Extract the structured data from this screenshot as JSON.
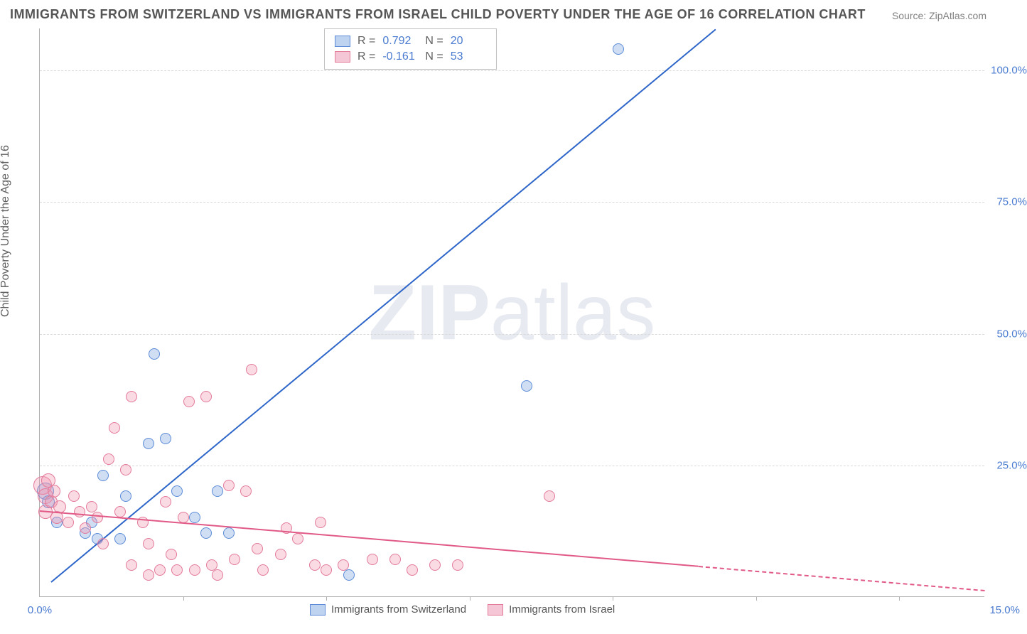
{
  "title": "IMMIGRANTS FROM SWITZERLAND VS IMMIGRANTS FROM ISRAEL CHILD POVERTY UNDER THE AGE OF 16 CORRELATION CHART",
  "source": "Source: ZipAtlas.com",
  "ylabel": "Child Poverty Under the Age of 16",
  "watermark_a": "ZIP",
  "watermark_b": "atlas",
  "xlim": [
    0,
    16.5
  ],
  "ylim": [
    0,
    108
  ],
  "ytick_step": 25,
  "xtick_step": 2.5,
  "ytick_labels": [
    "25.0%",
    "50.0%",
    "75.0%",
    "100.0%"
  ],
  "xtick_label_first": "0.0%",
  "xtick_label_last": "15.0%",
  "grid_color": "#d9d9d9",
  "axis_color": "#b0b0b0",
  "label_color": "#4a7bd0",
  "series": [
    {
      "name": "Immigrants from Switzerland",
      "short": "switzerland",
      "R": "0.792",
      "N": "20",
      "fill": "rgba(120,160,220,0.35)",
      "stroke": "#5b8bd8",
      "swatch_fill": "#bdd3f0",
      "swatch_stroke": "#5b8bd8",
      "line_color": "#2e66c9",
      "reg": {
        "x1": 0.2,
        "y1": 3,
        "x2": 11.8,
        "y2": 108
      },
      "points": [
        {
          "x": 0.1,
          "y": 20,
          "r": 12
        },
        {
          "x": 0.15,
          "y": 18,
          "r": 9
        },
        {
          "x": 0.3,
          "y": 14,
          "r": 8
        },
        {
          "x": 0.8,
          "y": 12,
          "r": 8
        },
        {
          "x": 0.9,
          "y": 14,
          "r": 8
        },
        {
          "x": 1.0,
          "y": 11,
          "r": 8
        },
        {
          "x": 1.1,
          "y": 23,
          "r": 8
        },
        {
          "x": 1.4,
          "y": 11,
          "r": 8
        },
        {
          "x": 1.5,
          "y": 19,
          "r": 8
        },
        {
          "x": 1.9,
          "y": 29,
          "r": 8
        },
        {
          "x": 2.0,
          "y": 46,
          "r": 8
        },
        {
          "x": 2.2,
          "y": 30,
          "r": 8
        },
        {
          "x": 2.4,
          "y": 20,
          "r": 8
        },
        {
          "x": 2.7,
          "y": 15,
          "r": 8
        },
        {
          "x": 2.9,
          "y": 12,
          "r": 8
        },
        {
          "x": 3.1,
          "y": 20,
          "r": 8
        },
        {
          "x": 3.3,
          "y": 12,
          "r": 8
        },
        {
          "x": 5.4,
          "y": 4,
          "r": 8
        },
        {
          "x": 8.5,
          "y": 40,
          "r": 8
        },
        {
          "x": 10.1,
          "y": 104,
          "r": 8
        }
      ]
    },
    {
      "name": "Immigrants from Israel",
      "short": "israel",
      "R": "-0.161",
      "N": "53",
      "fill": "rgba(240,150,175,0.35)",
      "stroke": "#e37a9a",
      "swatch_fill": "#f5c6d6",
      "swatch_stroke": "#e37a9a",
      "line_color": "#e15a87",
      "reg": {
        "x1": 0,
        "y1": 16.5,
        "x2": 11.5,
        "y2": 6
      },
      "reg_dash": {
        "x1": 11.5,
        "y1": 6,
        "x2": 16.5,
        "y2": 1.4
      },
      "points": [
        {
          "x": 0.05,
          "y": 21,
          "r": 13
        },
        {
          "x": 0.1,
          "y": 19,
          "r": 11
        },
        {
          "x": 0.1,
          "y": 16,
          "r": 10
        },
        {
          "x": 0.15,
          "y": 22,
          "r": 10
        },
        {
          "x": 0.2,
          "y": 18,
          "r": 9
        },
        {
          "x": 0.25,
          "y": 20,
          "r": 9
        },
        {
          "x": 0.3,
          "y": 15,
          "r": 9
        },
        {
          "x": 0.35,
          "y": 17,
          "r": 9
        },
        {
          "x": 0.5,
          "y": 14,
          "r": 8
        },
        {
          "x": 0.6,
          "y": 19,
          "r": 8
        },
        {
          "x": 0.7,
          "y": 16,
          "r": 8
        },
        {
          "x": 0.8,
          "y": 13,
          "r": 8
        },
        {
          "x": 0.9,
          "y": 17,
          "r": 8
        },
        {
          "x": 1.0,
          "y": 15,
          "r": 8
        },
        {
          "x": 1.1,
          "y": 10,
          "r": 8
        },
        {
          "x": 1.2,
          "y": 26,
          "r": 8
        },
        {
          "x": 1.3,
          "y": 32,
          "r": 8
        },
        {
          "x": 1.4,
          "y": 16,
          "r": 8
        },
        {
          "x": 1.5,
          "y": 24,
          "r": 8
        },
        {
          "x": 1.6,
          "y": 6,
          "r": 8
        },
        {
          "x": 1.6,
          "y": 38,
          "r": 8
        },
        {
          "x": 1.8,
          "y": 14,
          "r": 8
        },
        {
          "x": 1.9,
          "y": 4,
          "r": 8
        },
        {
          "x": 1.9,
          "y": 10,
          "r": 8
        },
        {
          "x": 2.1,
          "y": 5,
          "r": 8
        },
        {
          "x": 2.2,
          "y": 18,
          "r": 8
        },
        {
          "x": 2.3,
          "y": 8,
          "r": 8
        },
        {
          "x": 2.4,
          "y": 5,
          "r": 8
        },
        {
          "x": 2.5,
          "y": 15,
          "r": 8
        },
        {
          "x": 2.6,
          "y": 37,
          "r": 8
        },
        {
          "x": 2.7,
          "y": 5,
          "r": 8
        },
        {
          "x": 2.9,
          "y": 38,
          "r": 8
        },
        {
          "x": 3.0,
          "y": 6,
          "r": 8
        },
        {
          "x": 3.1,
          "y": 4,
          "r": 8
        },
        {
          "x": 3.3,
          "y": 21,
          "r": 8
        },
        {
          "x": 3.4,
          "y": 7,
          "r": 8
        },
        {
          "x": 3.6,
          "y": 20,
          "r": 8
        },
        {
          "x": 3.7,
          "y": 43,
          "r": 8
        },
        {
          "x": 3.8,
          "y": 9,
          "r": 8
        },
        {
          "x": 3.9,
          "y": 5,
          "r": 8
        },
        {
          "x": 4.2,
          "y": 8,
          "r": 8
        },
        {
          "x": 4.3,
          "y": 13,
          "r": 8
        },
        {
          "x": 4.5,
          "y": 11,
          "r": 8
        },
        {
          "x": 4.8,
          "y": 6,
          "r": 8
        },
        {
          "x": 4.9,
          "y": 14,
          "r": 8
        },
        {
          "x": 5.0,
          "y": 5,
          "r": 8
        },
        {
          "x": 5.3,
          "y": 6,
          "r": 8
        },
        {
          "x": 5.8,
          "y": 7,
          "r": 8
        },
        {
          "x": 6.2,
          "y": 7,
          "r": 8
        },
        {
          "x": 6.5,
          "y": 5,
          "r": 8
        },
        {
          "x": 6.9,
          "y": 6,
          "r": 8
        },
        {
          "x": 7.3,
          "y": 6,
          "r": 8
        },
        {
          "x": 8.9,
          "y": 19,
          "r": 8
        }
      ]
    }
  ],
  "stats_labels": {
    "R": "R =",
    "N": "N ="
  }
}
